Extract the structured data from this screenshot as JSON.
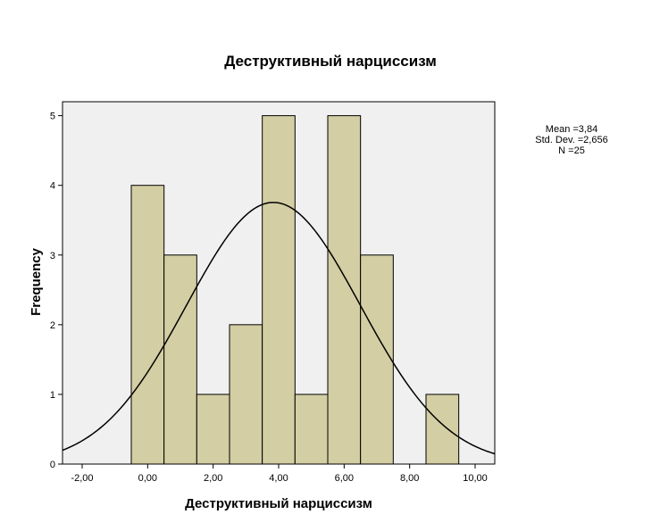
{
  "colors": {
    "plot_background": "#f0f0f0",
    "bar_fill": "#d3cea3",
    "bar_stroke": "#000000",
    "curve": "#000000"
  },
  "stats": {
    "mean": "Mean =3,84",
    "std": "Std. Dev. =2,656",
    "n": "N =25"
  },
  "chart_data": {
    "type": "bar",
    "title": "Деструктивный нарциссизм",
    "xlabel": "Деструктивный нарциссизм",
    "ylabel": "Frequency",
    "xlim": [
      -2.6,
      10.6
    ],
    "ylim": [
      0,
      5.2
    ],
    "bin_width": 1,
    "bins": [
      {
        "from": -0.5,
        "to": 0.5,
        "count": 4
      },
      {
        "from": 0.5,
        "to": 1.5,
        "count": 3
      },
      {
        "from": 1.5,
        "to": 2.5,
        "count": 1
      },
      {
        "from": 2.5,
        "to": 3.5,
        "count": 2
      },
      {
        "from": 3.5,
        "to": 4.5,
        "count": 5
      },
      {
        "from": 4.5,
        "to": 5.5,
        "count": 1
      },
      {
        "from": 5.5,
        "to": 6.5,
        "count": 5
      },
      {
        "from": 6.5,
        "to": 7.5,
        "count": 3
      },
      {
        "from": 7.5,
        "to": 8.5,
        "count": 0
      },
      {
        "from": 8.5,
        "to": 9.5,
        "count": 1
      }
    ],
    "xticks": [
      {
        "value": -2,
        "label": "-2,00"
      },
      {
        "value": 0,
        "label": "0,00"
      },
      {
        "value": 2,
        "label": "2,00"
      },
      {
        "value": 4,
        "label": "4,00"
      },
      {
        "value": 6,
        "label": "6,00"
      },
      {
        "value": 8,
        "label": "8,00"
      },
      {
        "value": 10,
        "label": "10,00"
      }
    ],
    "yticks": [
      {
        "value": 0,
        "label": "0"
      },
      {
        "value": 1,
        "label": "1"
      },
      {
        "value": 2,
        "label": "2"
      },
      {
        "value": 3,
        "label": "3"
      },
      {
        "value": 4,
        "label": "4"
      },
      {
        "value": 5,
        "label": "5"
      }
    ],
    "normal_curve": {
      "mean": 3.84,
      "sd": 2.656,
      "n": 25,
      "bin_width": 1
    },
    "grid": false
  }
}
